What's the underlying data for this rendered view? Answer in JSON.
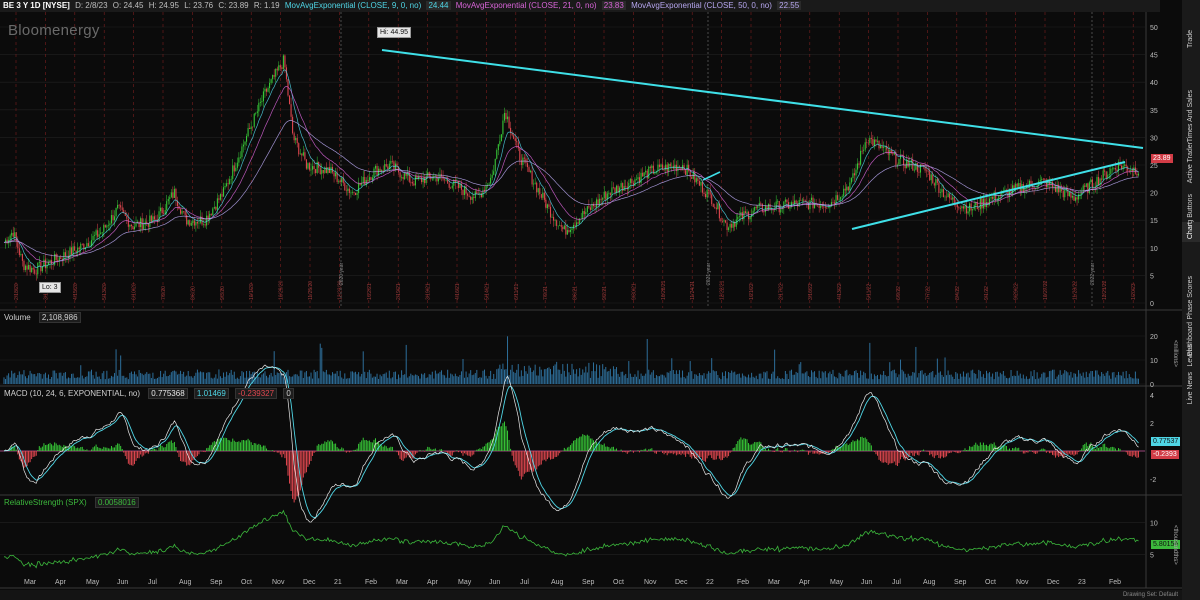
{
  "header": {
    "symbol": "BE 3 Y 1D [NYSE]",
    "date": "D: 2/8/23",
    "open": "O: 24.45",
    "high": "H: 24.95",
    "low": "L: 23.76",
    "close": "C: 23.89",
    "range": "R: 1.19",
    "ema9_label": "MovAvgExponential (CLOSE, 9, 0, no)",
    "ema9_value": "24.44",
    "ema21_label": "MovAvgExponential (CLOSE, 21, 0, no)",
    "ema21_value": "23.83",
    "ema50_label": "MovAvgExponential (CLOSE, 50, 0, no)",
    "ema50_value": "22.55"
  },
  "logo": "Bloomenergy",
  "price_pane": {
    "y_ticks": [
      "50",
      "45",
      "40",
      "35",
      "30",
      "25",
      "20",
      "15",
      "10",
      "5",
      "0"
    ],
    "hi_label": "Hi: 44.95",
    "lo_label": "Lo: 3",
    "last_price": "23.89",
    "year_markers": [
      "2020 year",
      "2021 year",
      "2022 year"
    ],
    "date_labels": [
      "2/18/20",
      "3/18/20",
      "4/15/20",
      "5/13/20",
      "6/10/20",
      "7/9/20",
      "8/6/20",
      "9/3/20",
      "10/1/20",
      "10/29/20",
      "11/25/20",
      "12/23/20",
      "1/22/21",
      "2/19/21",
      "3/19/21",
      "4/16/21",
      "5/14/21",
      "6/11/21",
      "7/9/21",
      "8/6/21",
      "9/2/21",
      "9/30/21",
      "10/28/21",
      "11/24/21",
      "12/22/21",
      "1/21/22",
      "2/17/22",
      "3/16/22",
      "4/13/22",
      "5/11/22",
      "6/9/22",
      "7/7/22",
      "8/4/22",
      "9/1/22",
      "9/29/22",
      "10/27/22",
      "11/23/22",
      "12/21/22",
      "1/20/23"
    ]
  },
  "volume_pane": {
    "label": "Volume",
    "value": "2,108,986",
    "y_ticks": [
      "20",
      "10",
      "0"
    ],
    "unit": "<millions>"
  },
  "macd_pane": {
    "label": "MACD (10, 24, 6, EXPONENTIAL, no)",
    "value1": "0.775368",
    "value2": "1.01469",
    "value3": "-0.239327",
    "value4": "0",
    "y_ticks": [
      "4",
      "2",
      "-2"
    ],
    "tag_macd": "0.77537",
    "tag_diff": "-0.2393"
  },
  "rs_pane": {
    "label": "RelativeStrength (SPX)",
    "value": "0.0058016",
    "y_ticks": [
      "10",
      "5"
    ],
    "tag": "5.80156",
    "unit": "<thousandths>"
  },
  "x_axis": [
    "Mar",
    "Apr",
    "May",
    "Jun",
    "Jul",
    "Aug",
    "Sep",
    "Oct",
    "Nov",
    "Dec",
    "21",
    "Feb",
    "Mar",
    "Apr",
    "May",
    "Jun",
    "Jul",
    "Aug",
    "Sep",
    "Oct",
    "Nov",
    "Dec",
    "22",
    "Feb",
    "Mar",
    "Apr",
    "May",
    "Jun",
    "Jul",
    "Aug",
    "Sep",
    "Oct",
    "Nov",
    "Dec",
    "23",
    "Feb"
  ],
  "side_tabs": [
    "Trade",
    "Times And Sales",
    "Active Trader",
    "Big Buttons",
    "Chart",
    "Phase Scores",
    "Dashboard",
    "Level II",
    "Live News"
  ],
  "drawing_set": "Drawing Set: Default",
  "colors": {
    "background": "#0b0b0b",
    "up": "#37c837",
    "down": "#e0474f",
    "ema9": "#4fd6e6",
    "ema21": "#d864d8",
    "ema50": "#b7a7f0",
    "trendline": "#3fe0e8",
    "volume": "#2d6e9a",
    "macd_line": "#e8e8e8",
    "signal_line": "#4fd6e6",
    "rs_line": "#3cb83c"
  }
}
